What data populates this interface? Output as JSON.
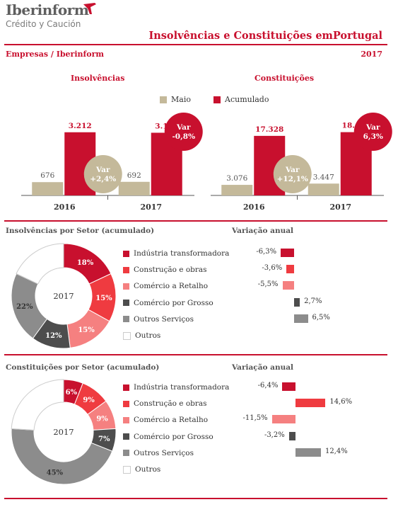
{
  "header": {
    "logo_name": "Iberinform",
    "logo_sub": "Crédito y Caución",
    "title": "Insolvências e Constituições emPortugal",
    "left_label": "Empresas / Iberinform",
    "year": "2017"
  },
  "colors": {
    "red": "#c8102e",
    "tan": "#c4b99a",
    "construcao": "#ef3b40",
    "comercio_retalho": "#f58080",
    "comercio_grosso": "#4d4d4d",
    "outros_servicos": "#8c8c8c",
    "outros": "#ffffff"
  },
  "legend": {
    "maio": "Maio",
    "acumulado": "Acumulado"
  },
  "chart_data": [
    {
      "type": "bar",
      "title": "Insolvências",
      "categories": [
        "2016",
        "2017"
      ],
      "series": [
        {
          "name": "Maio",
          "values": [
            676,
            692
          ],
          "labels": [
            "676",
            "692"
          ]
        },
        {
          "name": "Acumulado",
          "values": [
            3212,
            3187
          ],
          "labels": [
            "3.212",
            "3.187"
          ]
        }
      ],
      "ylim": [
        0,
        3600
      ],
      "annotations": [
        {
          "text": [
            "Var",
            "+2,4%"
          ],
          "series": "Maio"
        },
        {
          "text": [
            "Var",
            "-0,8%"
          ],
          "series": "Acumulado"
        }
      ]
    },
    {
      "type": "bar",
      "title": "Constituições",
      "categories": [
        "2016",
        "2017"
      ],
      "series": [
        {
          "name": "Maio",
          "values": [
            3076,
            3447
          ],
          "labels": [
            "3.076",
            "3.447"
          ]
        },
        {
          "name": "Acumulado",
          "values": [
            17328,
            18413
          ],
          "labels": [
            "17.328",
            "18.413"
          ]
        }
      ],
      "ylim": [
        0,
        20600
      ],
      "annotations": [
        {
          "text": [
            "Var",
            "+12,1%"
          ],
          "series": "Maio"
        },
        {
          "text": [
            "Var",
            "6,3%"
          ],
          "series": "Acumulado"
        }
      ]
    },
    {
      "type": "pie",
      "title": "Insolvências por Setor (acumulado)",
      "center_label": "2017",
      "slices": [
        {
          "name": "Indústria transformadora",
          "value": 18,
          "label": "18%"
        },
        {
          "name": "Construção e obras",
          "value": 15,
          "label": "15%"
        },
        {
          "name": "Comércio a Retalho",
          "value": 15,
          "label": "15%"
        },
        {
          "name": "Comércio por Grosso",
          "value": 12,
          "label": "12%"
        },
        {
          "name": "Outros Serviços",
          "value": 22,
          "label": "22%"
        },
        {
          "name": "Outros",
          "value": 18,
          "label": ""
        }
      ]
    },
    {
      "type": "bar",
      "title": "Variação anual",
      "orientation": "horizontal",
      "categories": [
        "Indústria transformadora",
        "Construção e obras",
        "Comércio a Retalho",
        "Comércio por Grosso",
        "Outros Serviços"
      ],
      "values": [
        -6.3,
        -3.6,
        -5.5,
        2.7,
        6.5
      ],
      "labels": [
        "-6,3%",
        "-3,6%",
        "-5,5%",
        "2,7%",
        "6,5%"
      ]
    },
    {
      "type": "pie",
      "title": "Constituições por Setor (acumulado)",
      "center_label": "2017",
      "slices": [
        {
          "name": "Indústria transformadora",
          "value": 6,
          "label": "6%"
        },
        {
          "name": "Construção e obras",
          "value": 9,
          "label": "9%"
        },
        {
          "name": "Comércio a Retalho",
          "value": 9,
          "label": "9%"
        },
        {
          "name": "Comércio por Grosso",
          "value": 7,
          "label": "7%"
        },
        {
          "name": "Outros Serviços",
          "value": 45,
          "label": "45%"
        },
        {
          "name": "Outros",
          "value": 24,
          "label": ""
        }
      ]
    },
    {
      "type": "bar",
      "title": "Variação anual",
      "orientation": "horizontal",
      "categories": [
        "Indústria transformadora",
        "Construção e obras",
        "Comércio a Retalho",
        "Comércio por Grosso",
        "Outros Serviços"
      ],
      "values": [
        -6.4,
        14.6,
        -11.5,
        -3.2,
        12.4
      ],
      "labels": [
        "-6,4%",
        "14,6%",
        "-11,5%",
        "-3,2%",
        "12,4%"
      ]
    }
  ]
}
